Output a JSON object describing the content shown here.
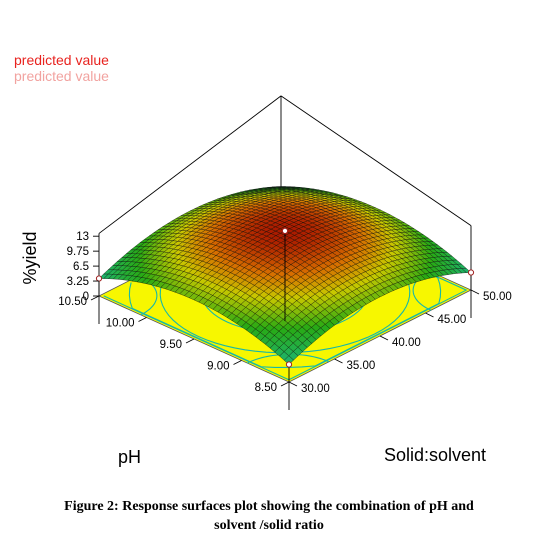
{
  "legend": {
    "item1": "predicted value",
    "item2": "predicted value"
  },
  "caption": {
    "line1": "Figure 2: Response surfaces plot showing the combination of pH and",
    "line2": "solvent /solid ratio"
  },
  "colors": {
    "legend_item1": "#e8231f",
    "legend_item2": "#f2a3a0",
    "floor": "#f7f700",
    "contour": "#16b8a8",
    "surface_low": "#1fa0e0",
    "surface_mid": "#1f9a1f",
    "surface_high": "#b01a00"
  },
  "chart_data": {
    "type": "surface",
    "title": "",
    "zlabel": "%yield",
    "xlabel": "pH",
    "ylabel": "Solid:solvent",
    "x_ticks": [
      "8.50",
      "9.00",
      "9.50",
      "10.00",
      "10.50"
    ],
    "y_ticks": [
      "30.00",
      "35.00",
      "40.00",
      "45.00",
      "50.00"
    ],
    "z_ticks": [
      "0",
      "3.25",
      "6.5",
      "9.75",
      "13"
    ],
    "x_range": [
      8.5,
      10.5
    ],
    "y_range": [
      30,
      50
    ],
    "z_range": [
      0,
      13
    ],
    "grid": [
      {
        "pH": 8.5,
        "ratio": 30,
        "yield": 3.2
      },
      {
        "pH": 8.5,
        "ratio": 40,
        "yield": 8.8
      },
      {
        "pH": 8.5,
        "ratio": 50,
        "yield": 3.2
      },
      {
        "pH": 9.5,
        "ratio": 30,
        "yield": 8.9
      },
      {
        "pH": 9.5,
        "ratio": 40,
        "yield": 13.5
      },
      {
        "pH": 9.5,
        "ratio": 50,
        "yield": 8.9
      },
      {
        "pH": 10.5,
        "ratio": 30,
        "yield": 3.2
      },
      {
        "pH": 10.5,
        "ratio": 40,
        "yield": 8.8
      },
      {
        "pH": 10.5,
        "ratio": 50,
        "yield": 3.2
      }
    ],
    "contour_lines": true
  }
}
